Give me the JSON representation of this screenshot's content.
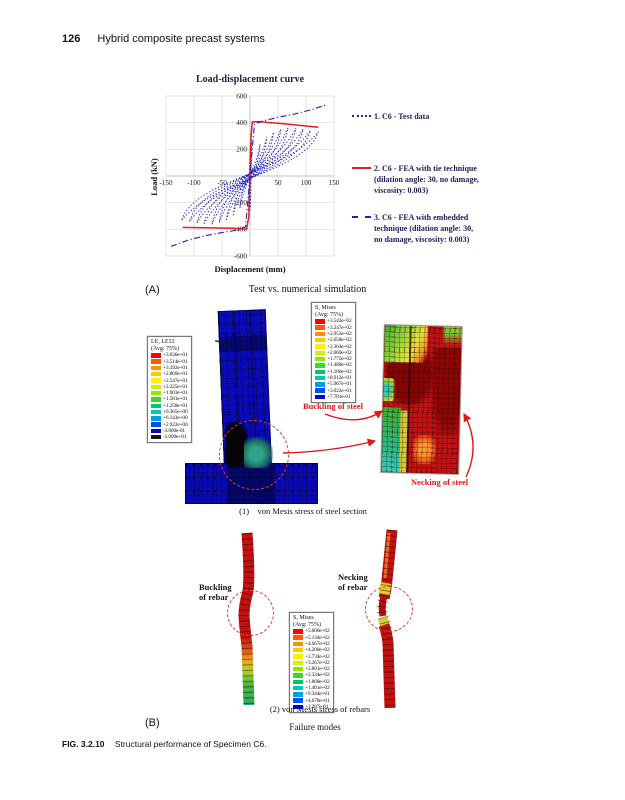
{
  "page": {
    "header": {
      "number": "126",
      "title": "Hybrid composite precast systems"
    },
    "caption": {
      "label": "FIG. 3.2.10",
      "text": "Structural performance of Specimen C6."
    }
  },
  "chart_data": {
    "type": "line",
    "title": "Load-displacement curve",
    "xlabel": "Displacement (mm)",
    "ylabel": "Load (kN)",
    "xlim": [
      -150,
      150
    ],
    "ylim": [
      -600,
      600
    ],
    "xticks": [
      -150,
      -100,
      -50,
      0,
      50,
      100,
      150
    ],
    "yticks": [
      -600,
      -400,
      -200,
      0,
      200,
      400,
      600
    ],
    "grid": true,
    "legend_position": "right",
    "series": [
      {
        "name": "1. C6 - Test data",
        "style": "dotted",
        "color": "#2121bd",
        "type": "hysteresis_loops",
        "cycles_amplitude_peak": [
          [
            18,
            240
          ],
          [
            30,
            295
          ],
          [
            42,
            330
          ],
          [
            55,
            350
          ],
          [
            68,
            362
          ],
          [
            82,
            360
          ],
          [
            95,
            352
          ],
          [
            108,
            342
          ],
          [
            122,
            332
          ]
        ]
      },
      {
        "name": "2. C6 - FEA with tie technique (dilation angle: 30, no damage, viscosity: 0.003)",
        "style": "solid",
        "color": "#e02020",
        "type": "backbone",
        "points": [
          [
            -120,
            -385
          ],
          [
            -30,
            -392
          ],
          [
            -6,
            -398
          ],
          [
            -2,
            -300
          ],
          [
            0,
            0
          ],
          [
            2,
            300
          ],
          [
            4,
            405
          ],
          [
            15,
            408
          ],
          [
            60,
            392
          ],
          [
            122,
            366
          ]
        ]
      },
      {
        "name": "3. C6 - FEA with embedded technique (dilation angle: 30, no damage, viscosity: 0.003)",
        "style": "dash-dot",
        "color": "#2121bd",
        "type": "monotonic",
        "points": [
          [
            -141,
            -528
          ],
          [
            -110,
            -480
          ],
          [
            -80,
            -448
          ],
          [
            -50,
            -424
          ],
          [
            -22,
            -405
          ],
          [
            -8,
            -380
          ],
          [
            -3,
            -150
          ],
          [
            3,
            150
          ],
          [
            8,
            390
          ],
          [
            22,
            412
          ],
          [
            50,
            440
          ],
          [
            80,
            465
          ],
          [
            110,
            498
          ],
          [
            138,
            536
          ]
        ]
      }
    ],
    "legend_lines": [
      [
        "1. C6 - Test data"
      ],
      [
        "2. C6 - FEA with tie technique",
        "(dilation angle: 30, no damage,",
        "viscosity: 0.003)"
      ],
      [
        "3. C6 - FEA with embedded",
        "technique (dilation angle: 30,",
        "no damage, viscosity: 0.003)"
      ]
    ]
  },
  "section_a": {
    "label": "(A)",
    "title": "Test vs. numerical simulation",
    "le_legend": {
      "title": "LE, LE33",
      "subtitle": "(Avg: 75%)",
      "values": [
        "+3.836e+01",
        "+3.514e+01",
        "+3.192e+01",
        "+2.869e+01",
        "+2.547e+01",
        "+2.225e+01",
        "+1.903e+01",
        "+1.581e+01",
        "+1.258e+01",
        "+9.365e+00",
        "+6.143e+00",
        "+2.922e+00",
        "-3.000e-01",
        "-1.009e+01"
      ],
      "swatches": [
        "#ff0000",
        "#ff5a00",
        "#ff9000",
        "#ffc800",
        "#fff200",
        "#c8f400",
        "#8ce800",
        "#3cd828",
        "#00c864",
        "#00c8b4",
        "#00a0e8",
        "#0050f0",
        "#0000e0",
        "#161616"
      ]
    },
    "mises_legend": {
      "title": "S, Mises",
      "subtitle": "(Avg: 75%)",
      "values": [
        "+3.542e+02",
        "+3.247e+02",
        "+2.953e+02",
        "+2.658e+02",
        "+2.364e+02",
        "+2.069e+02",
        "+1.775e+02",
        "+1.480e+02",
        "+1.186e+02",
        "+8.912e+01",
        "+5.967e+01",
        "+3.022e+01",
        "+7.781e-01"
      ],
      "swatches": [
        "#ff0000",
        "#ff5a00",
        "#ff9000",
        "#ffc800",
        "#fff200",
        "#c8f400",
        "#8ce800",
        "#3cd828",
        "#00c864",
        "#00c8b4",
        "#00a0e8",
        "#0050f0",
        "#0000e0"
      ]
    },
    "buckling_label": "Buckling of steel",
    "necking_label": "Necking of steel",
    "caption": "(1)    von Mesis stress of steel section"
  },
  "section_b": {
    "label": "(B)",
    "mises_legend": {
      "title": "S, Mises",
      "subtitle": "(Avg: 75%)",
      "values": [
        "+5.600e+02",
        "+5.134e+02",
        "+4.667e+02",
        "+4.200e+02",
        "+3.734e+02",
        "+3.267e+02",
        "+2.801e+02",
        "+2.334e+02",
        "+1.868e+02",
        "+1.401e+02",
        "+9.344e+01",
        "+4.678e+01",
        "+1.287e-01"
      ],
      "swatches": [
        "#ff0000",
        "#ff5a00",
        "#ff9000",
        "#ffc800",
        "#fff200",
        "#c8f400",
        "#8ce800",
        "#3cd828",
        "#00c864",
        "#00c8b4",
        "#00a0e8",
        "#0050f0",
        "#0000e0"
      ]
    },
    "buckling_label_lines": [
      "Buckling",
      "of rebar"
    ],
    "necking_label_lines": [
      "Necking",
      "of rebar"
    ],
    "caption": "(2) von Mesis stress of rebars",
    "subcaption": "Failure modes"
  }
}
